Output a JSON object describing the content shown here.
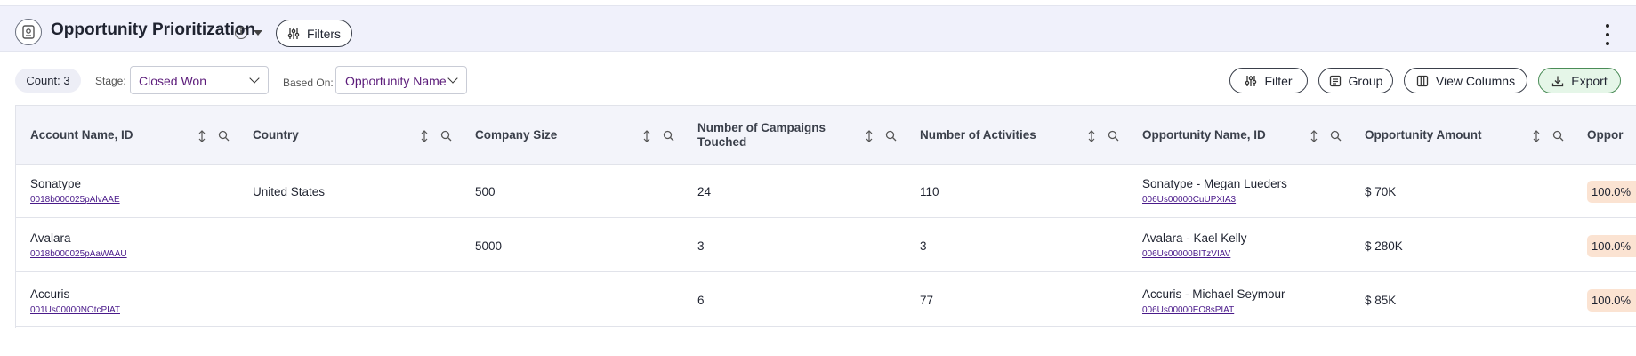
{
  "header": {
    "title": "Opportunity Prioritization",
    "filters_label": "Filters"
  },
  "toolbar": {
    "count_label": "Count: 3",
    "stage_label": "Stage:",
    "stage_value": "Closed Won",
    "based_on_label": "Based On:",
    "based_on_value": "Opportunity Name",
    "filter_label": "Filter",
    "group_label": "Group",
    "view_columns_label": "View Columns",
    "export_label": "Export"
  },
  "table": {
    "columns": [
      "Account Name, ID",
      "Country",
      "Company Size",
      "Number of Campaigns Touched",
      "Number of Activities",
      "Opportunity Name, ID",
      "Opportunity Amount",
      "Oppor"
    ],
    "rows": [
      {
        "account_name": "Sonatype",
        "account_id": "0018b000025pAlvAAE",
        "country": "United States",
        "company_size": "500",
        "campaigns": "24",
        "activities": "110",
        "opportunity_name": "Sonatype - Megan Lueders",
        "opportunity_id": "006Us00000CuUPXIA3",
        "amount": "$ 70K",
        "probability": "100.0%"
      },
      {
        "account_name": "Avalara",
        "account_id": "0018b000025pAaWAAU",
        "country": "",
        "company_size": "5000",
        "campaigns": "3",
        "activities": "3",
        "opportunity_name": "Avalara - Kael Kelly",
        "opportunity_id": "006Us00000BITzVIAV",
        "amount": "$ 280K",
        "probability": "100.0%"
      },
      {
        "account_name": "Accuris",
        "account_id": "001Us00000NOtcPIAT",
        "country": "",
        "company_size": "",
        "campaigns": "6",
        "activities": "77",
        "opportunity_name": "Accuris - Michael Seymour",
        "opportunity_id": "006Us00000EO8sPIAT",
        "amount": "$ 85K",
        "probability": "100.0%"
      }
    ]
  },
  "colors": {
    "header_bg": "#f0f1fb",
    "link": "#4a1a8a",
    "select_text": "#5b1b7a",
    "export_bg": "#e5f6e8",
    "badge_bg": "#fbe3d2"
  },
  "icons": [
    "report-icon",
    "info-icon",
    "caret-down-icon",
    "sliders-icon",
    "kebab-menu-icon",
    "chevron-down-icon",
    "list-icon",
    "columns-icon",
    "download-icon",
    "sort-icon",
    "search-icon"
  ]
}
